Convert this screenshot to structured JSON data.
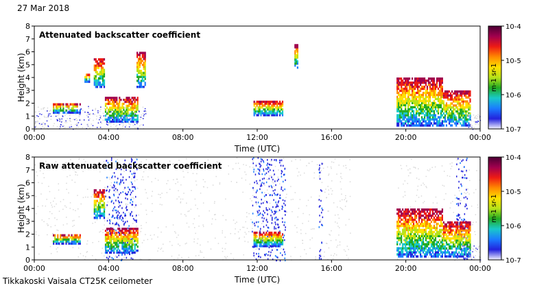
{
  "date": "27 Mar 2018",
  "footer": "Tikkakoski Vaisala CT25K ceilometer",
  "colors": {
    "background_echo": "#d9d9d9",
    "colormap": [
      "#f2f2ff",
      "#2222dd",
      "#1a7cff",
      "#19c9c9",
      "#22aa22",
      "#b7e21a",
      "#ffe000",
      "#ff8a00",
      "#ee1b14",
      "#a1004e",
      "#4a0033"
    ]
  },
  "chart_data": [
    {
      "type": "heatmap",
      "title": "Attenuated backscatter coefficient",
      "xlabel": "Time (UTC)",
      "ylabel": "Height (km)",
      "xlim": [
        0,
        24
      ],
      "ylim": [
        0,
        8
      ],
      "xticks": [
        0,
        4,
        8,
        12,
        16,
        20,
        24
      ],
      "xtick_labels": [
        "00:00",
        "04:00",
        "08:00",
        "12:00",
        "16:00",
        "20:00",
        "00:00"
      ],
      "yticks": [
        0,
        1,
        2,
        3,
        4,
        5,
        6,
        7,
        8
      ],
      "ytick_labels": [
        "0",
        "1",
        "2",
        "3",
        "4",
        "5",
        "6",
        "7",
        "8"
      ],
      "colorbar": {
        "scale": "log",
        "range": [
          1e-07,
          0.0001
        ],
        "tick_labels": [
          "10-7",
          "10-6",
          "10-5",
          "10-4"
        ],
        "unit_label": "m-1 sr-1"
      },
      "features": [
        {
          "kind": "aerosol_layer",
          "t": [
            0.0,
            6.0
          ],
          "top_km": 1.8
        },
        {
          "kind": "cloud",
          "t": [
            1.0,
            2.5
          ],
          "base_km": 1.2,
          "top_km": 2.0
        },
        {
          "kind": "cloud",
          "t": [
            3.8,
            5.6
          ],
          "base_km": 0.5,
          "top_km": 2.5
        },
        {
          "kind": "cloud",
          "t": [
            2.7,
            3.0
          ],
          "base_km": 3.6,
          "top_km": 4.3
        },
        {
          "kind": "cloud",
          "t": [
            3.2,
            3.8
          ],
          "base_km": 3.2,
          "top_km": 5.5
        },
        {
          "kind": "cloud",
          "t": [
            5.5,
            6.0
          ],
          "base_km": 3.2,
          "top_km": 6.0
        },
        {
          "kind": "cloud",
          "t": [
            11.8,
            13.4
          ],
          "base_km": 1.0,
          "top_km": 2.2
        },
        {
          "kind": "cloud",
          "t": [
            14.0,
            14.2
          ],
          "base_km": 4.7,
          "top_km": 6.6
        },
        {
          "kind": "cloud",
          "t": [
            19.5,
            22.0
          ],
          "base_km": 0.2,
          "top_km": 4.0
        },
        {
          "kind": "cloud",
          "t": [
            22.0,
            23.5
          ],
          "base_km": 0.2,
          "top_km": 3.0
        },
        {
          "kind": "aerosol_layer",
          "t": [
            23.3,
            24.0
          ],
          "top_km": 1.2
        }
      ]
    },
    {
      "type": "heatmap",
      "title": "Raw attenuated backscatter coefficient",
      "xlabel": "Time (UTC)",
      "ylabel": "Height (km)",
      "xlim": [
        0,
        24
      ],
      "ylim": [
        0,
        8
      ],
      "xticks": [
        0,
        4,
        8,
        12,
        16,
        20,
        24
      ],
      "xtick_labels": [
        "00:00",
        "04:00",
        "08:00",
        "12:00",
        "16:00",
        "20:00",
        "00:00"
      ],
      "yticks": [
        0,
        1,
        2,
        3,
        4,
        5,
        6,
        7,
        8
      ],
      "ytick_labels": [
        "0",
        "1",
        "2",
        "3",
        "4",
        "5",
        "6",
        "7",
        "8"
      ],
      "colorbar": {
        "scale": "log",
        "range": [
          1e-07,
          0.0001
        ],
        "tick_labels": [
          "10-7",
          "10-6",
          "10-5",
          "10-4"
        ],
        "unit_label": "m-1 sr-1"
      },
      "features": [
        {
          "kind": "noise_region",
          "t": [
            0.0,
            17.0
          ],
          "top_km": 8.0
        },
        {
          "kind": "noise_region",
          "t": [
            19.5,
            24.0
          ],
          "top_km": 8.0
        },
        {
          "kind": "noise_column",
          "t": [
            3.8,
            5.5
          ]
        },
        {
          "kind": "noise_column",
          "t": [
            11.7,
            13.5
          ]
        },
        {
          "kind": "noise_column",
          "t": [
            15.3,
            15.5
          ]
        },
        {
          "kind": "noise_column",
          "t": [
            22.7,
            23.3
          ]
        },
        {
          "kind": "cloud",
          "t": [
            1.0,
            2.5
          ],
          "base_km": 1.2,
          "top_km": 2.0
        },
        {
          "kind": "cloud",
          "t": [
            3.8,
            5.6
          ],
          "base_km": 0.5,
          "top_km": 2.5
        },
        {
          "kind": "cloud",
          "t": [
            3.2,
            3.8
          ],
          "base_km": 3.2,
          "top_km": 5.5
        },
        {
          "kind": "cloud",
          "t": [
            11.8,
            13.4
          ],
          "base_km": 1.0,
          "top_km": 2.2
        },
        {
          "kind": "cloud",
          "t": [
            19.5,
            22.0
          ],
          "base_km": 0.2,
          "top_km": 4.0
        },
        {
          "kind": "cloud",
          "t": [
            22.0,
            23.5
          ],
          "base_km": 0.2,
          "top_km": 3.0
        },
        {
          "kind": "aerosol_layer",
          "t": [
            23.3,
            24.0
          ],
          "top_km": 1.2
        }
      ]
    }
  ]
}
